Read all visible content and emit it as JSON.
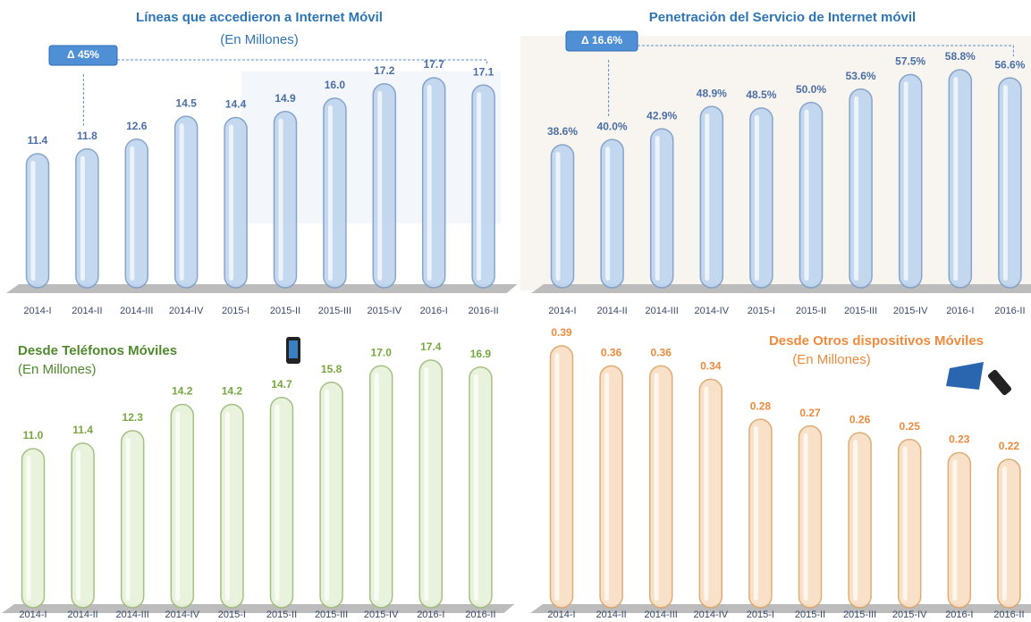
{
  "chart_data": [
    {
      "type": "bar",
      "title": "Líneas que accedieron a Internet Móvil",
      "subtitle": "(En Millones)",
      "annotation": "Δ 45%",
      "categories": [
        "2014-I",
        "2014-II",
        "2014-III",
        "2014-IV",
        "2015-I",
        "2015-II",
        "2015-III",
        "2015-IV",
        "2016-I",
        "2016-II"
      ],
      "values": [
        11.4,
        11.8,
        12.6,
        14.5,
        14.4,
        14.9,
        16.0,
        17.2,
        17.7,
        17.1
      ],
      "value_labels": [
        "11.4",
        "11.8",
        "12.6",
        "14.5",
        "14.4",
        "14.9",
        "16.0",
        "17.2",
        "17.7",
        "17.1"
      ],
      "color": "#bfd5ee"
    },
    {
      "type": "bar",
      "title": "Penetración del Servicio de Internet móvil",
      "annotation": "Δ 16.6%",
      "categories": [
        "2014-I",
        "2014-II",
        "2014-III",
        "2014-IV",
        "2015-I",
        "2015-II",
        "2015-III",
        "2015-IV",
        "2016-I",
        "2016-II"
      ],
      "values": [
        38.6,
        40.0,
        42.9,
        48.9,
        48.5,
        50.0,
        53.6,
        57.5,
        58.8,
        56.6
      ],
      "value_labels": [
        "38.6%",
        "40.0%",
        "42.9%",
        "48.9%",
        "48.5%",
        "50.0%",
        "53.6%",
        "57.5%",
        "58.8%",
        "56.6%"
      ],
      "color": "#bfd5ee"
    },
    {
      "type": "bar",
      "title": "Desde Teléfonos Móviles",
      "subtitle": "(En Millones)",
      "categories": [
        "2014-I",
        "2014-II",
        "2014-III",
        "2014-IV",
        "2015-I",
        "2015-II",
        "2015-III",
        "2015-IV",
        "2016-I",
        "2016-II"
      ],
      "values": [
        11.0,
        11.4,
        12.3,
        14.2,
        14.2,
        14.7,
        15.8,
        17.0,
        17.4,
        16.9
      ],
      "value_labels": [
        "11.0",
        "11.4",
        "12.3",
        "14.2",
        "14.2",
        "14.7",
        "15.8",
        "17.0",
        "17.4",
        "16.9"
      ],
      "color": "#e8f1da"
    },
    {
      "type": "bar",
      "title": "Desde Otros dispositivos Móviles",
      "subtitle": "(En Millones)",
      "categories": [
        "2014-I",
        "2014-II",
        "2014-III",
        "2014-IV",
        "2015-I",
        "2015-II",
        "2015-III",
        "2015-IV",
        "2016-I",
        "2016-II"
      ],
      "values": [
        0.39,
        0.36,
        0.36,
        0.34,
        0.28,
        0.27,
        0.26,
        0.25,
        0.23,
        0.22
      ],
      "color": "#f8dfc4"
    }
  ]
}
